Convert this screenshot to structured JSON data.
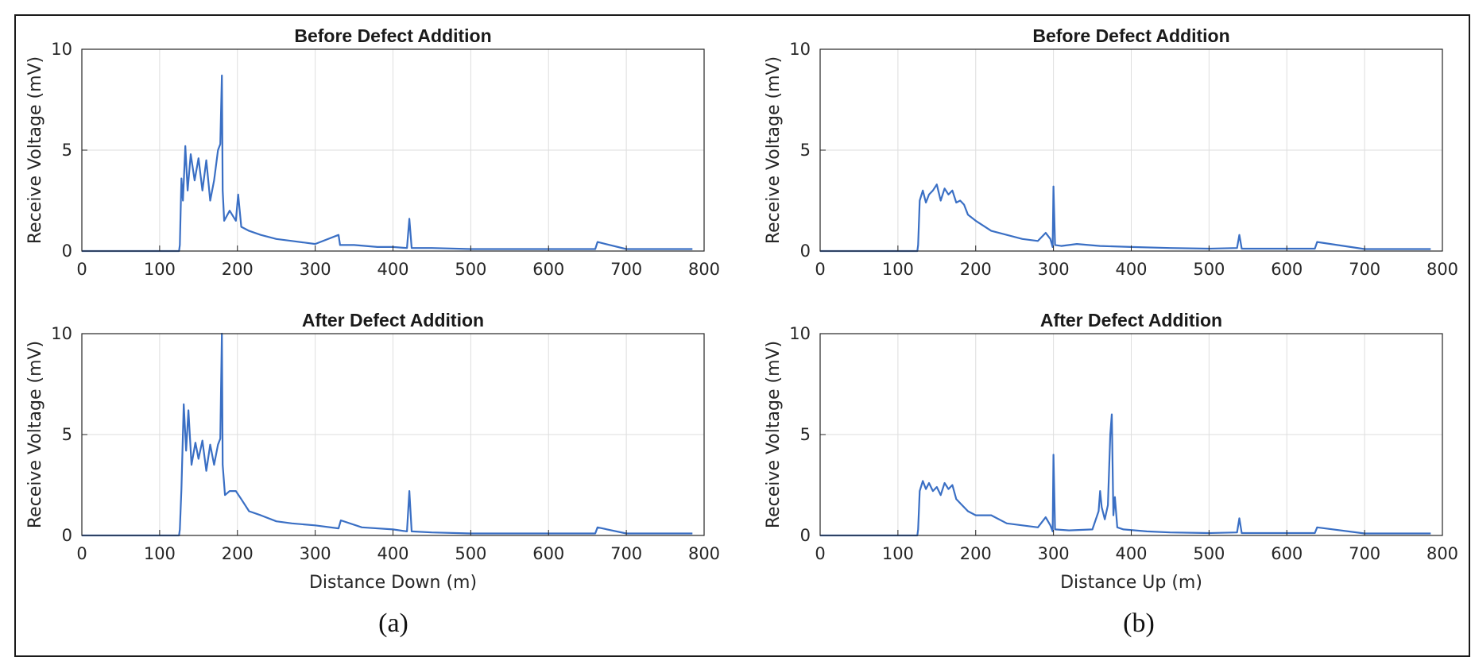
{
  "panel_labels": [
    "(a)",
    "(b)"
  ],
  "chart_data": [
    {
      "type": "line",
      "title": "Before Defect Addition",
      "xlabel": "",
      "ylabel": "Receive Voltage (mV)",
      "xlim": [
        0,
        800
      ],
      "ylim": [
        0,
        10
      ],
      "xticks": [
        0,
        100,
        200,
        300,
        400,
        500,
        600,
        700,
        800
      ],
      "yticks": [
        0,
        5,
        10
      ],
      "grid": true,
      "color": "#3a6fc4",
      "series": [
        {
          "x": [
            0,
            125,
            126,
            128,
            130,
            133,
            136,
            140,
            145,
            150,
            155,
            160,
            165,
            170,
            175,
            178,
            180,
            181,
            183,
            190,
            198,
            201,
            205,
            215,
            230,
            250,
            270,
            300,
            330,
            332,
            350,
            380,
            400,
            418,
            421,
            424,
            450,
            500,
            600,
            660,
            663,
            700,
            785
          ],
          "y": [
            0,
            0,
            0.3,
            3.6,
            2.5,
            5.2,
            3.0,
            4.8,
            3.5,
            4.6,
            3.0,
            4.5,
            2.5,
            3.5,
            5.0,
            5.3,
            8.7,
            3.0,
            1.5,
            2.0,
            1.5,
            2.8,
            1.2,
            1.0,
            0.8,
            0.6,
            0.5,
            0.35,
            0.8,
            0.3,
            0.3,
            0.2,
            0.2,
            0.15,
            1.6,
            0.15,
            0.15,
            0.1,
            0.1,
            0.1,
            0.45,
            0.1,
            0.1
          ]
        }
      ]
    },
    {
      "type": "line",
      "title": "After Defect Addition",
      "xlabel": "Distance Down (m)",
      "ylabel": "Receive Voltage (mV)",
      "xlim": [
        0,
        800
      ],
      "ylim": [
        0,
        10
      ],
      "xticks": [
        0,
        100,
        200,
        300,
        400,
        500,
        600,
        700,
        800
      ],
      "yticks": [
        0,
        5,
        10
      ],
      "grid": true,
      "color": "#3a6fc4",
      "series": [
        {
          "x": [
            0,
            125,
            126,
            128,
            131,
            134,
            137,
            141,
            146,
            150,
            155,
            160,
            165,
            170,
            175,
            178,
            180,
            181,
            184,
            190,
            198,
            205,
            215,
            230,
            250,
            270,
            300,
            330,
            333,
            360,
            400,
            418,
            421,
            424,
            450,
            500,
            600,
            660,
            663,
            700,
            785
          ],
          "y": [
            0,
            0,
            0.3,
            2.3,
            6.5,
            4.2,
            6.2,
            3.5,
            4.6,
            3.8,
            4.7,
            3.2,
            4.5,
            3.5,
            4.5,
            4.8,
            10,
            3.5,
            2.0,
            2.2,
            2.2,
            1.8,
            1.2,
            1.0,
            0.7,
            0.6,
            0.5,
            0.35,
            0.75,
            0.4,
            0.3,
            0.2,
            2.2,
            0.2,
            0.15,
            0.1,
            0.1,
            0.1,
            0.4,
            0.1,
            0.1
          ]
        }
      ]
    },
    {
      "type": "line",
      "title": "Before Defect Addition",
      "xlabel": "",
      "ylabel": "Receive Voltage (mV)",
      "xlim": [
        0,
        800
      ],
      "ylim": [
        0,
        10
      ],
      "xticks": [
        0,
        100,
        200,
        300,
        400,
        500,
        600,
        700,
        800
      ],
      "yticks": [
        0,
        5,
        10
      ],
      "grid": true,
      "color": "#3a6fc4",
      "series": [
        {
          "x": [
            0,
            125,
            126,
            128,
            132,
            136,
            140,
            145,
            150,
            155,
            160,
            165,
            170,
            175,
            180,
            185,
            190,
            200,
            220,
            240,
            260,
            280,
            290,
            296,
            299,
            300,
            302,
            310,
            330,
            360,
            400,
            450,
            500,
            536,
            539,
            542,
            600,
            636,
            639,
            700,
            785
          ],
          "y": [
            0,
            0,
            0.3,
            2.5,
            3.0,
            2.4,
            2.8,
            3.0,
            3.3,
            2.5,
            3.1,
            2.8,
            3.0,
            2.4,
            2.5,
            2.3,
            1.8,
            1.5,
            1.0,
            0.8,
            0.6,
            0.5,
            0.9,
            0.6,
            0.2,
            3.2,
            0.3,
            0.25,
            0.35,
            0.25,
            0.2,
            0.15,
            0.12,
            0.15,
            0.8,
            0.12,
            0.12,
            0.12,
            0.45,
            0.1,
            0.1
          ]
        }
      ]
    },
    {
      "type": "line",
      "title": "After Defect Addition",
      "xlabel": "Distance Up (m)",
      "ylabel": "Receive Voltage (mV)",
      "xlim": [
        0,
        800
      ],
      "ylim": [
        0,
        10
      ],
      "xticks": [
        0,
        100,
        200,
        300,
        400,
        500,
        600,
        700,
        800
      ],
      "yticks": [
        0,
        5,
        10
      ],
      "grid": true,
      "color": "#3a6fc4",
      "series": [
        {
          "x": [
            0,
            125,
            126,
            128,
            132,
            136,
            140,
            145,
            150,
            155,
            160,
            165,
            170,
            175,
            180,
            190,
            200,
            220,
            240,
            260,
            280,
            290,
            296,
            299,
            300,
            302,
            320,
            350,
            358,
            360,
            362,
            366,
            370,
            373,
            375,
            377,
            379,
            382,
            390,
            420,
            450,
            500,
            536,
            539,
            542,
            600,
            636,
            639,
            700,
            785
          ],
          "y": [
            0,
            0,
            0.3,
            2.2,
            2.7,
            2.3,
            2.6,
            2.2,
            2.4,
            2.0,
            2.6,
            2.3,
            2.5,
            1.8,
            1.6,
            1.2,
            1.0,
            1.0,
            0.6,
            0.5,
            0.4,
            0.9,
            0.5,
            0.2,
            4.0,
            0.3,
            0.25,
            0.3,
            1.2,
            2.2,
            1.4,
            0.8,
            1.5,
            5.0,
            6.0,
            1.0,
            1.9,
            0.4,
            0.3,
            0.2,
            0.15,
            0.12,
            0.15,
            0.85,
            0.12,
            0.12,
            0.12,
            0.4,
            0.1,
            0.1
          ]
        }
      ]
    }
  ]
}
